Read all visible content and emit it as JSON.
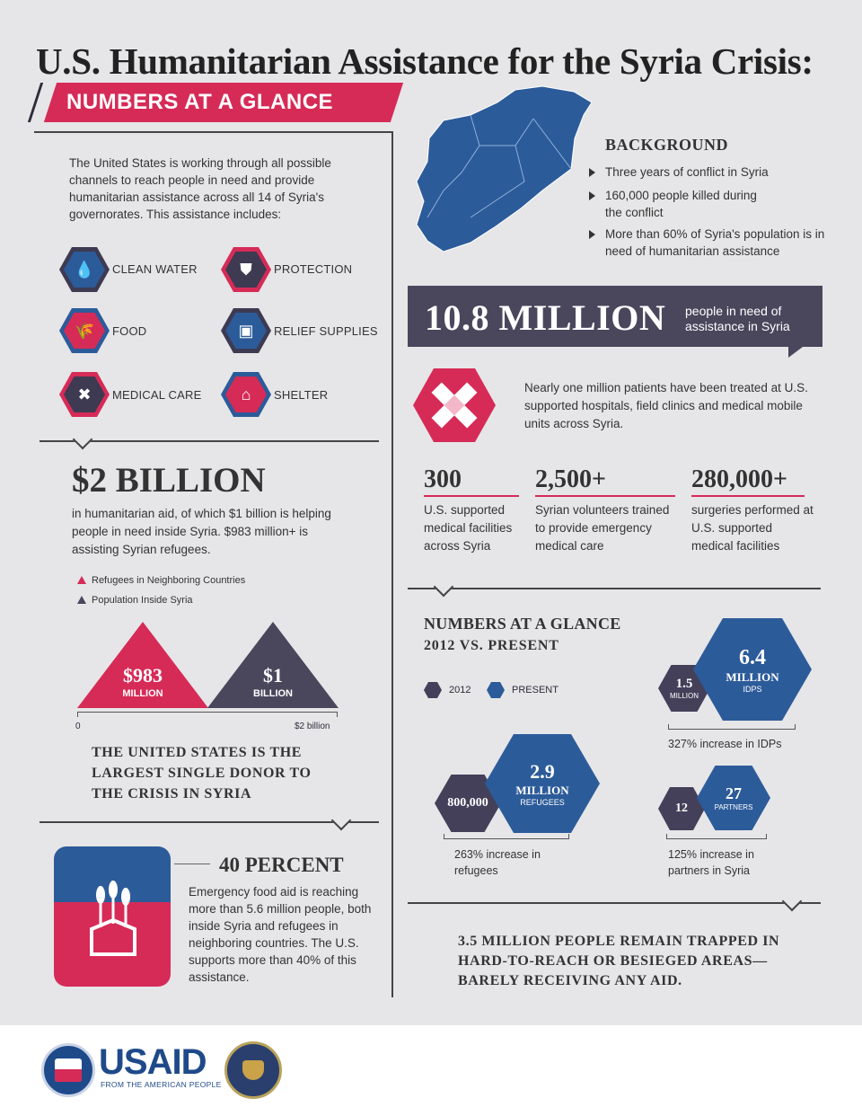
{
  "title": "U.S. Humanitarian Assistance for the Syria Crisis:",
  "subtitle": "NUMBERS AT A GLANCE",
  "intro": "The United States is working through all possible channels to reach people in need and provide humanitarian assistance across all 14 of Syria's governorates. This assistance includes:",
  "services": [
    {
      "label": "CLEAN WATER",
      "icon": "water-drops-icon"
    },
    {
      "label": "PROTECTION",
      "icon": "shield-icon"
    },
    {
      "label": "FOOD",
      "icon": "food-box-icon"
    },
    {
      "label": "RELIEF SUPPLIES",
      "icon": "supplies-box-icon"
    },
    {
      "label": "MEDICAL CARE",
      "icon": "bandage-icon"
    },
    {
      "label": "SHELTER",
      "icon": "house-icon"
    }
  ],
  "background": {
    "title": "BACKGROUND",
    "bullets": [
      "Three years of conflict in Syria",
      "160,000 people killed during the conflict",
      "More than 60% of Syria's population is in need of humanitarian assistance"
    ]
  },
  "need": {
    "number": "10.8 MILLION",
    "text": "people in need of assistance in Syria"
  },
  "patients": "Nearly one million patients have been treated at U.S. supported hospitals, field clinics and medical mobile units across Syria.",
  "stats": [
    {
      "num": "300",
      "text": "U.S. supported medical facilities across Syria"
    },
    {
      "num": "2,500+",
      "text": "Syrian volunteers trained to provide emergency medical care"
    },
    {
      "num": "280,000+",
      "text": "surgeries performed at U.S. supported medical facilities"
    }
  ],
  "funding": {
    "title": "$2 BILLION",
    "text": "in humanitarian aid, of which $1 billion is helping people in need inside Syria. $983 million+ is assisting Syrian refugees.",
    "legend": [
      "Refugees in Neighboring Countries",
      "Population Inside Syria"
    ],
    "tri1_value": "$983",
    "tri1_unit": "MILLION",
    "tri2_value": "$1",
    "tri2_unit": "BILLION",
    "axis_start": "0",
    "axis_end": "$2 billion",
    "colors": {
      "refugees": "#d62b57",
      "inside": "#4a465c"
    }
  },
  "donor": "THE UNITED STATES IS THE LARGEST SINGLE DONOR TO THE CRISIS IN SYRIA",
  "food": {
    "title": "40 PERCENT",
    "text": "Emergency food aid is reaching more than 5.6 million people, both inside Syria and refugees in neighboring countries. The U.S. supports more than 40% of this assistance."
  },
  "glance": {
    "title": "NUMBERS AT A GLANCE",
    "subtitle": "2012 VS. PRESENT",
    "legend_2012": "2012",
    "legend_present": "PRESENT",
    "colors": {
      "y2012": "#45405a",
      "present": "#2c5b9a"
    },
    "idps": {
      "old_num": "1.5",
      "old_unit": "MILLION",
      "new_num": "6.4",
      "new_unit": "MILLION",
      "new_label": "IDPS",
      "increase": "327% increase in IDPs"
    },
    "refugees": {
      "old_num": "800,000",
      "new_num": "2.9",
      "new_unit": "MILLION",
      "new_label": "REFUGEES",
      "increase": "263% increase in refugees"
    },
    "partners": {
      "old_num": "12",
      "new_num": "27",
      "new_label": "PARTNERS",
      "increase": "125% increase in partners in Syria"
    }
  },
  "trapped": "3.5 MILLION PEOPLE REMAIN TRAPPED IN HARD-TO-REACH OR BESIEGED AREAS—BARELY RECEIVING ANY AID.",
  "footer": {
    "usaid": "USAID",
    "tagline": "FROM THE AMERICAN PEOPLE"
  }
}
